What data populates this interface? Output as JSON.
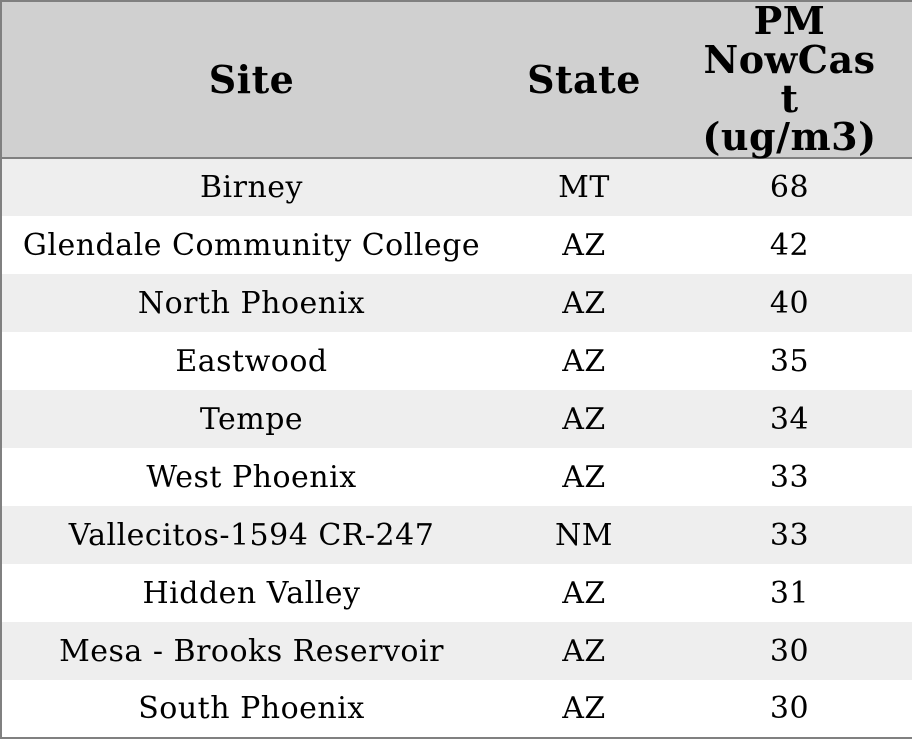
{
  "chart_data": {
    "type": "table",
    "columns": [
      "Site",
      "State",
      "PM NowCast (ug/m3)"
    ],
    "rows": [
      [
        "Birney",
        "MT",
        68
      ],
      [
        "Glendale Community College",
        "AZ",
        42
      ],
      [
        "North Phoenix",
        "AZ",
        40
      ],
      [
        "Eastwood",
        "AZ",
        35
      ],
      [
        "Tempe",
        "AZ",
        34
      ],
      [
        "West Phoenix",
        "AZ",
        33
      ],
      [
        "Vallecitos-1594 CR-247",
        "NM",
        33
      ],
      [
        "Hidden Valley",
        "AZ",
        31
      ],
      [
        "Mesa - Brooks Reservoir",
        "AZ",
        30
      ],
      [
        "South Phoenix",
        "AZ",
        30
      ]
    ],
    "layout": {
      "header_bg": "#d0d0d0",
      "row_odd_bg": "#eeeeee",
      "row_even_bg": "#ffffff",
      "border_color": "#808080",
      "text_color": "#000000",
      "alignment": "center"
    }
  }
}
